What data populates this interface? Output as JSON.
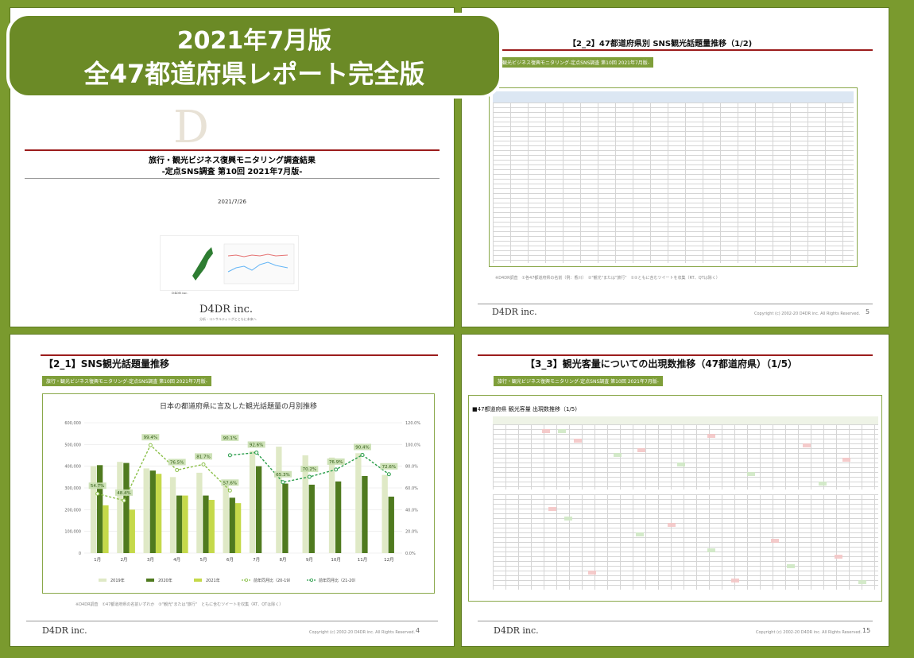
{
  "banner": {
    "line1": "2021年7月版",
    "line2": "全47都道府県レポート完全版"
  },
  "slide1": {
    "title_line1": "旅行・観光ビジネス復興モニタリング調査結果",
    "title_line2": "-定点SNS調査 第10回 2021年7月版-",
    "date": "2021/7/26",
    "logo": "D4DR inc.",
    "tagline": "分析・コンサルティングとともに未来へ"
  },
  "slide2": {
    "title": "【2_2】47都道府県別 SNS観光話題量推移（1/2)",
    "tag": "旅行・観光ビジネス復興モニタリング-定点SNS調査 第10回 2021年7月版-",
    "note": "※D4DR調査　①各47都道府県の名前（例：香川）　②\"観光\"または\"旅行\"　①②ともに含むツイートを収集（RT、QTは除く）",
    "logo": "D4DR inc.",
    "copyright": "Copyright (c) 2002-20 D4DR inc. All Rights Reserved.",
    "page": "5"
  },
  "slide3": {
    "title": "【2_1】SNS観光話題量推移",
    "tag": "旅行・観光ビジネス復興モニタリング-定点SNS調査 第10回 2021年7月版-",
    "note": "※D4DR調査　①47都道府県の名前いずれか　②\"観光\"または\"旅行\"　ともに含むツイートを収集（RT、QTは除く）",
    "logo": "D4DR inc.",
    "copyright": "Copyright (c) 2002-20 D4DR inc. All Rights Reserved.",
    "page": "4"
  },
  "slide4": {
    "title": "【3_3】観光客量についての出現数推移（47都道府県）（1/5）",
    "tag": "旅行・観光ビジネス復興モニタリング-定点SNS調査 第10回 2021年7月版-",
    "table_title": "■47都道府県 観光客量 出現数推移（1/5)",
    "logo": "D4DR inc.",
    "copyright": "Copyright (c) 2002-20 D4DR inc. All Rights Reserved.",
    "page": "15"
  },
  "chart_data": {
    "type": "bar",
    "title": "日本の都道府県に言及した観光話題量の月別推移",
    "categories": [
      "1月",
      "2月",
      "3月",
      "4月",
      "5月",
      "6月",
      "7月",
      "8月",
      "9月",
      "10月",
      "11月",
      "12月"
    ],
    "ylim": [
      0,
      600000
    ],
    "y2lim": [
      0,
      120
    ],
    "yticks": [
      "0",
      "100,000",
      "200,000",
      "300,000",
      "400,000",
      "500,000",
      "600,000"
    ],
    "y2ticks": [
      "0.0%",
      "20.0%",
      "40.0%",
      "60.0%",
      "80.0%",
      "100.0%",
      "120.0%"
    ],
    "series": [
      {
        "name": "2019年",
        "values": [
          400000,
          420000,
          390000,
          350000,
          370000,
          330000,
          470000,
          490000,
          450000,
          440000,
          460000,
          360000
        ]
      },
      {
        "name": "2020年",
        "values": [
          405000,
          415000,
          380000,
          265000,
          265000,
          255000,
          400000,
          320000,
          315000,
          330000,
          355000,
          260000
        ]
      },
      {
        "name": "2021年",
        "values": [
          220000,
          200000,
          365000,
          265000,
          245000,
          230000,
          null,
          null,
          null,
          null,
          null,
          null
        ]
      },
      {
        "name": "前年同月比（20-19）",
        "values": [
          54.7,
          48.4,
          99.4,
          76.5,
          81.7,
          57.6,
          null,
          null,
          null,
          null,
          null,
          null
        ]
      },
      {
        "name": "前年同月比（21-20）",
        "values": [
          null,
          null,
          null,
          null,
          null,
          90.1,
          92.6,
          65.3,
          70.2,
          76.9,
          90.4,
          72.6
        ]
      }
    ],
    "data_labels": [
      {
        "x": "1月",
        "label": "54.7%"
      },
      {
        "x": "2月",
        "label": "48.4%"
      },
      {
        "x": "3月",
        "label": "99.4%"
      },
      {
        "x": "4月",
        "label": "76.5%"
      },
      {
        "x": "5月",
        "label": "81.7%"
      },
      {
        "x": "6月",
        "label": "57.6%"
      },
      {
        "x": "6月",
        "label": "90.1%"
      },
      {
        "x": "7月",
        "label": "92.6%"
      },
      {
        "x": "8月",
        "label": "65.3%"
      },
      {
        "x": "9月",
        "label": "70.2%"
      },
      {
        "x": "10月",
        "label": "76.9%"
      },
      {
        "x": "11月",
        "label": "90.4%"
      },
      {
        "x": "12月",
        "label": "72.6%"
      }
    ],
    "legend": "bottom",
    "colors": {
      "2019": "#dfe9c6",
      "2020": "#4f7a1f",
      "2021": "#c5d94a",
      "line1": "#8cc04a",
      "line2": "#2a9d4a"
    }
  }
}
